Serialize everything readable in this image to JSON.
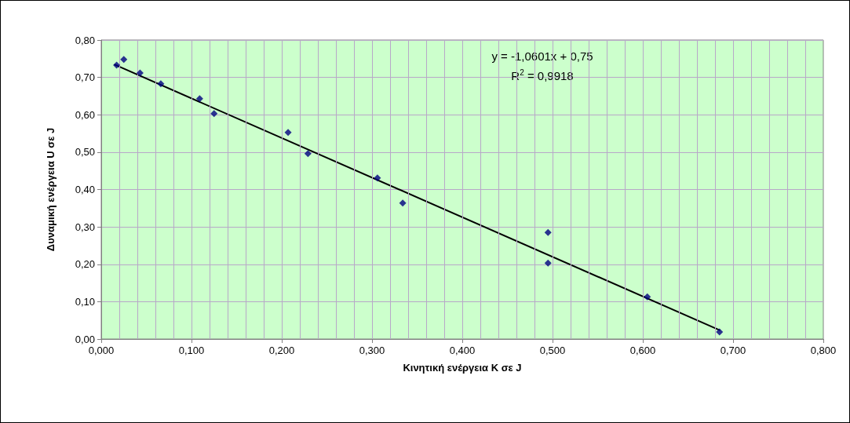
{
  "chart_data": {
    "type": "scatter",
    "xlabel": "Κινητική ενέργεια K σε J",
    "ylabel": "Δυναμική ενέργεια U σε J",
    "annotations": [
      "y = -1,0601x + 0,75",
      "R$^{2}$ = 0,9918"
    ],
    "series": [
      {
        "color": "#000080",
        "marker": "diamond",
        "x": [
          0.017,
          0.025,
          0.043,
          0.066,
          0.109,
          0.125,
          0.207,
          0.229,
          0.306,
          0.334,
          0.495,
          0.495,
          0.605,
          0.685
        ],
        "values": [
          0.733,
          0.748,
          0.712,
          0.683,
          0.643,
          0.603,
          0.553,
          0.496,
          0.431,
          0.364,
          0.285,
          0.203,
          0.113,
          0.019
        ]
      },
      {
        "type": "line",
        "color": "#000000",
        "marker": "none",
        "line_style": "solid",
        "x": [
          0.015,
          0.685
        ],
        "values": [
          0.734,
          0.024
        ]
      }
    ],
    "xlim": [
      0,
      0.8
    ],
    "xticks": [
      {
        "value": 0,
        "label": "0,000"
      },
      {
        "value": 0.02,
        "label": null
      },
      {
        "value": 0.04,
        "label": null
      },
      {
        "value": 0.06,
        "label": null
      },
      {
        "value": 0.08,
        "label": null
      },
      {
        "value": 0.1,
        "label": "0,100"
      },
      {
        "value": 0.12,
        "label": null
      },
      {
        "value": 0.14,
        "label": null
      },
      {
        "value": 0.16,
        "label": null
      },
      {
        "value": 0.18,
        "label": null
      },
      {
        "value": 0.2,
        "label": "0,200"
      },
      {
        "value": 0.22,
        "label": null
      },
      {
        "value": 0.24,
        "label": null
      },
      {
        "value": 0.26,
        "label": null
      },
      {
        "value": 0.28,
        "label": null
      },
      {
        "value": 0.3,
        "label": "0,300"
      },
      {
        "value": 0.32,
        "label": null
      },
      {
        "value": 0.34,
        "label": null
      },
      {
        "value": 0.36,
        "label": null
      },
      {
        "value": 0.38,
        "label": null
      },
      {
        "value": 0.4,
        "label": "0,400"
      },
      {
        "value": 0.42,
        "label": null
      },
      {
        "value": 0.44,
        "label": null
      },
      {
        "value": 0.46,
        "label": null
      },
      {
        "value": 0.48,
        "label": null
      },
      {
        "value": 0.5,
        "label": "0,500"
      },
      {
        "value": 0.52,
        "label": null
      },
      {
        "value": 0.54,
        "label": null
      },
      {
        "value": 0.56,
        "label": null
      },
      {
        "value": 0.58,
        "label": null
      },
      {
        "value": 0.6,
        "label": "0,600"
      },
      {
        "value": 0.62,
        "label": null
      },
      {
        "value": 0.64,
        "label": null
      },
      {
        "value": 0.66,
        "label": null
      },
      {
        "value": 0.68,
        "label": null
      },
      {
        "value": 0.7,
        "label": "0,700"
      },
      {
        "value": 0.72,
        "label": null
      },
      {
        "value": 0.74,
        "label": null
      },
      {
        "value": 0.76,
        "label": null
      },
      {
        "value": 0.78,
        "label": null
      },
      {
        "value": 0.8,
        "label": "0,800"
      }
    ],
    "ylim": [
      0,
      0.8
    ],
    "yticks": [
      {
        "value": 0,
        "label": "0,00"
      },
      {
        "value": 0.1,
        "label": "0,10"
      },
      {
        "value": 0.2,
        "label": "0,20"
      },
      {
        "value": 0.3,
        "label": "0,30"
      },
      {
        "value": 0.4,
        "label": "0,40"
      },
      {
        "value": 0.5,
        "label": "0,50"
      },
      {
        "value": 0.6,
        "label": "0,60"
      },
      {
        "value": 0.7,
        "label": "0,70"
      },
      {
        "value": 0.8,
        "label": "0,80"
      }
    ],
    "grid": true
  }
}
